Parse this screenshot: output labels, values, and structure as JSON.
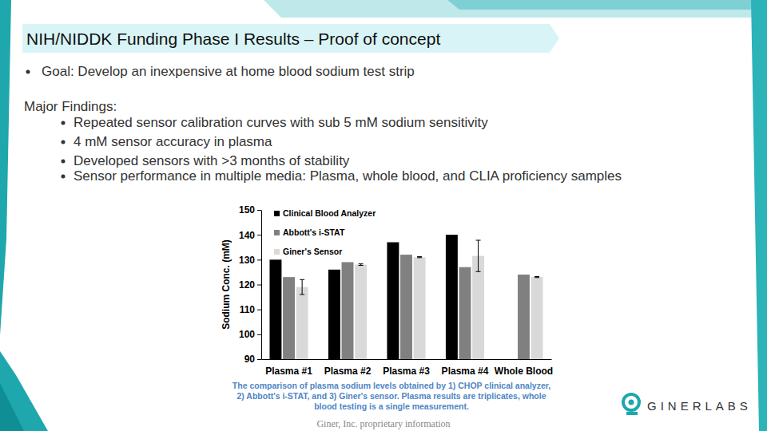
{
  "slide": {
    "title": "NIH/NIDDK Funding Phase I Results – Proof of concept",
    "bullets": [
      "Goal: Develop an inexpensive at home blood sodium test strip"
    ],
    "findings_heading": "Major Findings:",
    "findings": [
      "Repeated sensor calibration curves with sub 5 mM sodium sensitivity",
      "4 mM sensor accuracy in plasma",
      "Developed sensors with >3 months of stability",
      "Sensor performance in multiple media: Plasma, whole blood, and CLIA proficiency samples"
    ],
    "caption": [
      "The comparison of plasma sodium levels obtained by 1) CHOP clinical analyzer,",
      "2) Abbott's i-STAT, and 3) Giner's sensor. Plasma results are triplicates, whole",
      "blood testing is a single measurement."
    ],
    "logo": "GINERLABS",
    "footer": "Giner, Inc. proprietary information"
  },
  "chart_data": {
    "type": "bar",
    "y_label": "Sodium Conc. (mM)",
    "categories": [
      "Plasma #1",
      "Plasma #2",
      "Plasma #3",
      "Plasma #4",
      "Whole Blood"
    ],
    "series": [
      {
        "name": "Clinical Blood Analyzer",
        "color": "#000000",
        "values": [
          130,
          126,
          137,
          140,
          null
        ]
      },
      {
        "name": "Abbott's i-STAT",
        "color": "#808080",
        "values": [
          123,
          129,
          132,
          127,
          124
        ]
      },
      {
        "name": "Giner's Sensor",
        "color": "#d9d9d9",
        "values": [
          119,
          128,
          131,
          131.5,
          123
        ],
        "errors": [
          3,
          0.3,
          0.2,
          6.3,
          0.2
        ]
      }
    ],
    "ylim": [
      90,
      150
    ],
    "yticks": [
      90,
      100,
      110,
      120,
      130,
      140,
      150
    ],
    "grid": false,
    "legend": "top-left"
  }
}
